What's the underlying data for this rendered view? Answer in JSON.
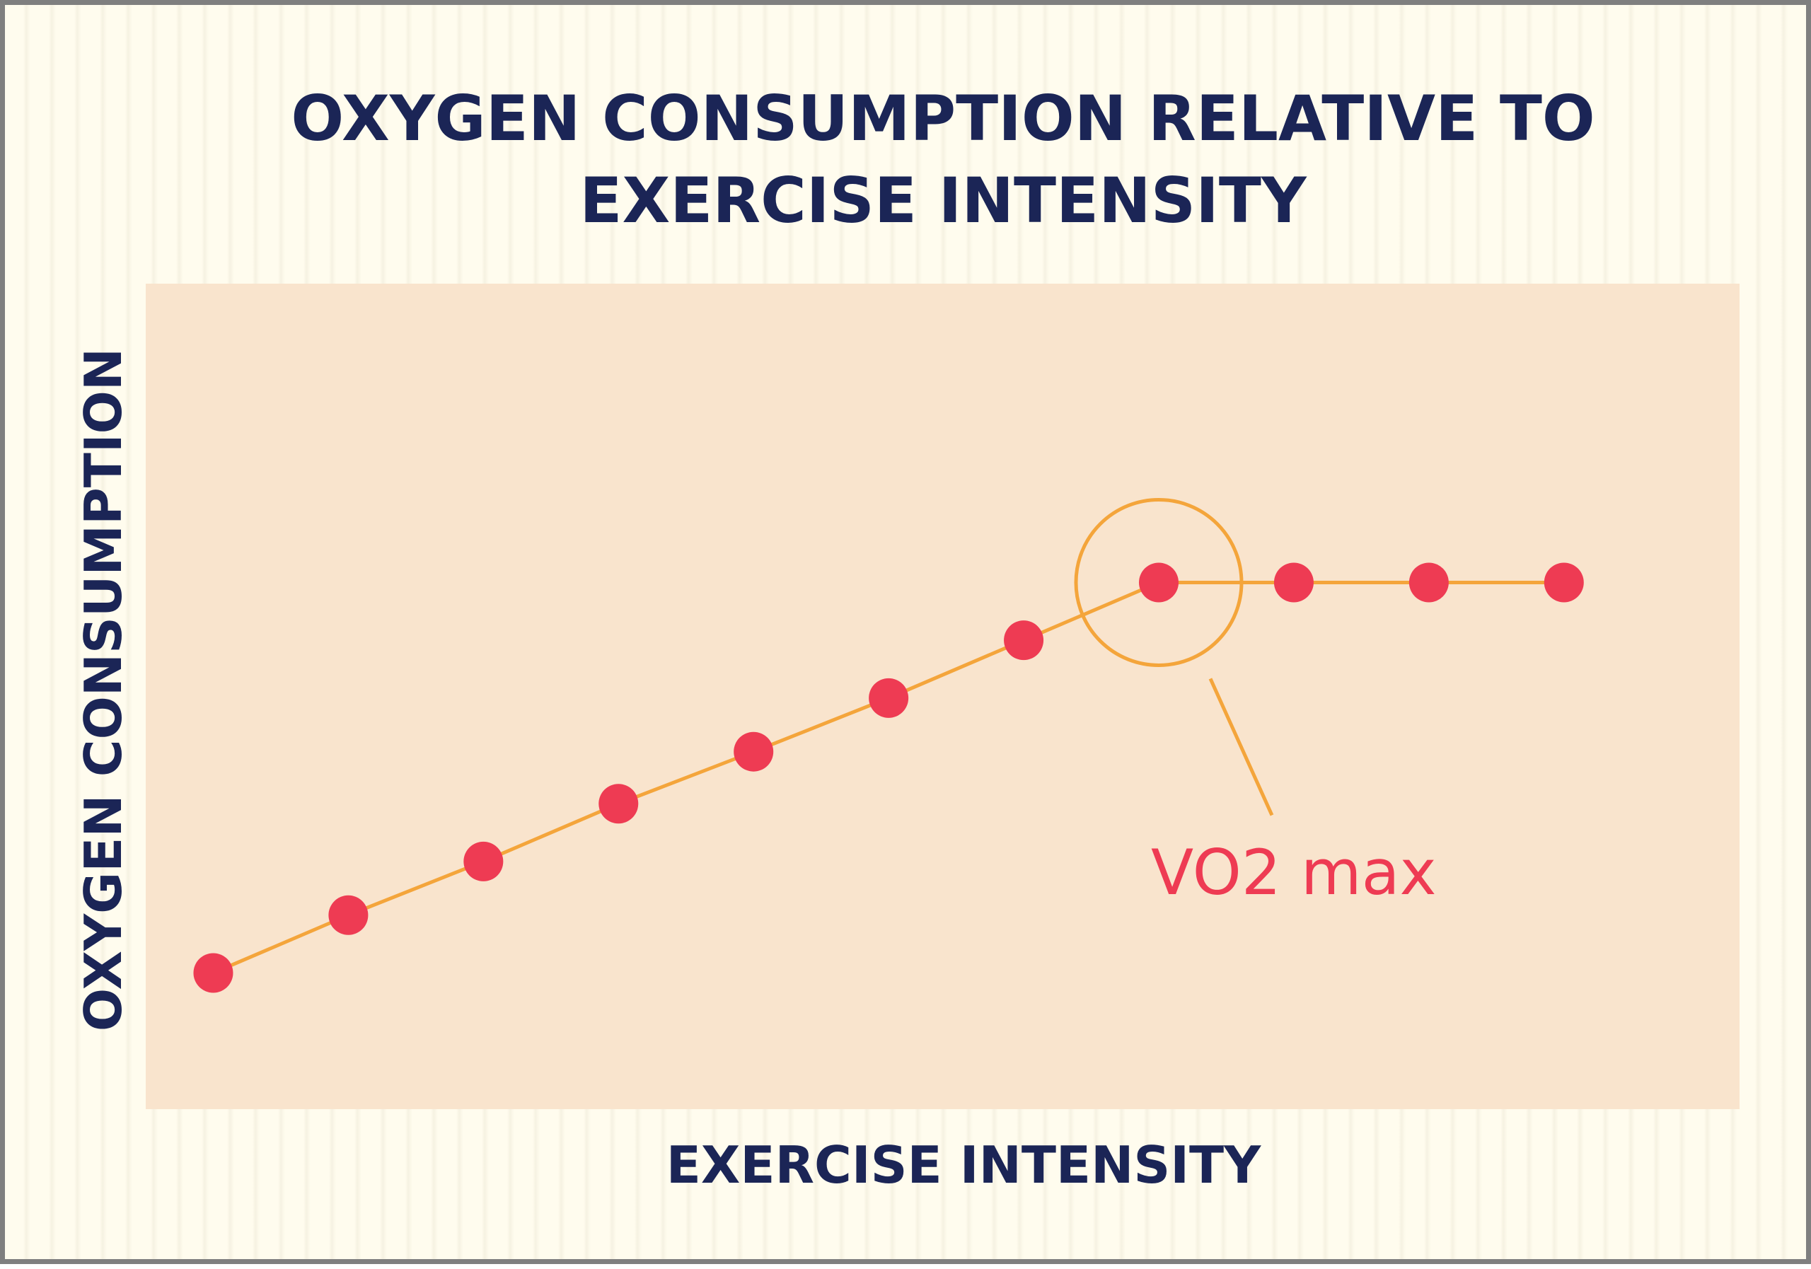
{
  "chart_data": {
    "type": "line",
    "title": "OXYGEN CONSUMPTION RELATIVE TO EXERCISE INTENSITY",
    "title_lines": [
      "OXYGEN CONSUMPTION RELATIVE TO",
      "EXERCISE INTENSITY"
    ],
    "xlabel": "EXERCISE INTENSITY",
    "ylabel": "OXYGEN CONSUMPTION",
    "x": [
      1,
      2,
      3,
      4,
      5,
      6,
      7,
      8,
      9,
      10,
      11
    ],
    "y": [
      16.5,
      23.5,
      30,
      37,
      43.3,
      49.8,
      56.8,
      63.8,
      63.8,
      63.8,
      63.8
    ],
    "xlim": [
      0.5,
      12.3
    ],
    "ylim": [
      0,
      100
    ],
    "grid": false,
    "annotation": {
      "text": "VO2 max",
      "point_index": 7
    },
    "colors": {
      "line": "#f4a53b",
      "marker": "#ee3b53",
      "plot_bg": "#f9e4cd",
      "page_bg": "#fffcee",
      "text": "#1b2556",
      "annotation": "#ee3b53"
    }
  }
}
